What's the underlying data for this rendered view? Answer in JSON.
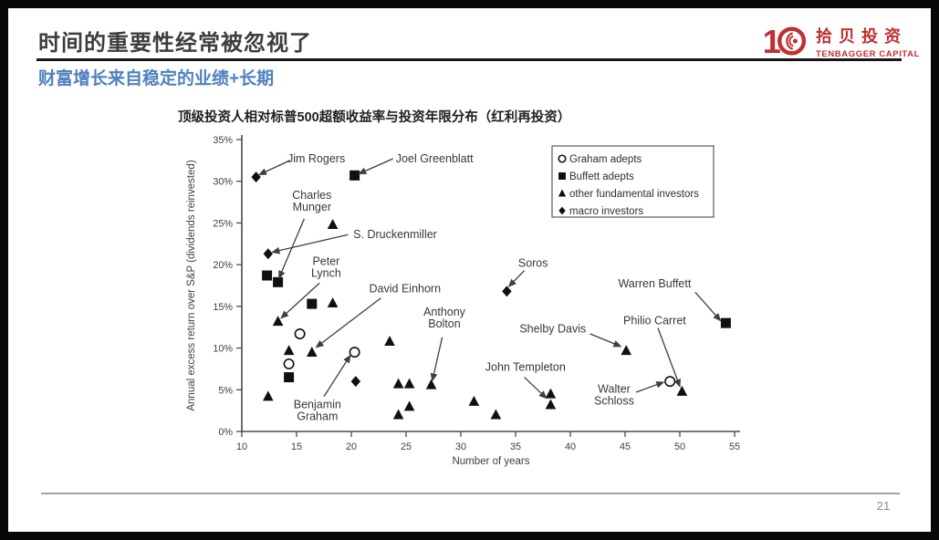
{
  "slide": {
    "title": "时间的重要性经常被忽视了",
    "subtitle": "财富增长来自稳定的业绩+长期",
    "page_number": "21",
    "accent_blue": "#4f81bd",
    "logo": {
      "cn": "拾贝投资",
      "en": "TENBAGGER CAPITAL",
      "color": "#c22f2f"
    }
  },
  "chart_data": {
    "type": "scatter",
    "title": "顶级投资人相对标普500超额收益率与投资年限分布（红利再投资）",
    "xlabel": "Number of years",
    "ylabel": "Annual excess return over S&P (dividends reinvested)",
    "xlim": [
      10,
      55
    ],
    "ylim": [
      0,
      35
    ],
    "xticks": [
      10,
      15,
      20,
      25,
      30,
      35,
      40,
      45,
      50,
      55
    ],
    "yticks": [
      "0%",
      "5%",
      "10%",
      "15%",
      "20%",
      "25%",
      "30%",
      "35%"
    ],
    "grid": false,
    "legend_position": "upper right",
    "legend": [
      {
        "symbol": "circle",
        "label": "Graham adepts"
      },
      {
        "symbol": "square",
        "label": "Buffett adepts"
      },
      {
        "symbol": "triangle",
        "label": "other fundamental investors"
      },
      {
        "symbol": "diamond",
        "label": "macro investors"
      }
    ],
    "series": [
      {
        "name": "Graham adepts",
        "symbol": "circle",
        "points": [
          [
            15.3,
            11.7
          ],
          [
            20.3,
            9.5,
            "Benjamin Graham"
          ],
          [
            14.3,
            8.1
          ],
          [
            49.1,
            6.0,
            "Walter Schloss"
          ]
        ]
      },
      {
        "name": "Buffett adepts",
        "symbol": "square",
        "points": [
          [
            20.3,
            30.7,
            "Joel Greenblatt"
          ],
          [
            12.3,
            18.7
          ],
          [
            13.3,
            17.9,
            "Charles Munger"
          ],
          [
            16.4,
            15.3
          ],
          [
            14.3,
            6.5
          ],
          [
            54.2,
            13.0,
            "Warren Buffett"
          ]
        ]
      },
      {
        "name": "other fundamental investors",
        "symbol": "triangle",
        "points": [
          [
            18.3,
            24.8
          ],
          [
            18.3,
            15.4
          ],
          [
            13.3,
            13.2,
            "Peter Lynch"
          ],
          [
            14.3,
            9.7
          ],
          [
            16.4,
            9.5,
            "David Einhorn"
          ],
          [
            12.4,
            4.2
          ],
          [
            23.5,
            10.8
          ],
          [
            24.3,
            5.7
          ],
          [
            25.3,
            5.7
          ],
          [
            27.3,
            5.6,
            "Anthony Bolton"
          ],
          [
            31.2,
            3.6
          ],
          [
            25.3,
            3.0
          ],
          [
            24.3,
            2.0
          ],
          [
            33.2,
            2.0
          ],
          [
            38.2,
            4.5,
            "John Templeton"
          ],
          [
            38.2,
            3.2
          ],
          [
            45.1,
            9.7,
            "Shelby Davis"
          ],
          [
            50.2,
            4.8,
            "Philio Carret"
          ]
        ]
      },
      {
        "name": "macro investors",
        "symbol": "diamond",
        "points": [
          [
            11.3,
            30.5,
            "Jim Rogers"
          ],
          [
            12.4,
            21.3,
            "S. Druckenmiller"
          ],
          [
            20.4,
            6.0
          ],
          [
            34.2,
            16.8,
            "Soros"
          ]
        ]
      }
    ],
    "annotations": [
      {
        "lines": [
          "Jim Rogers"
        ],
        "tx": 16.8,
        "ty": 32.7,
        "sx": 14.4,
        "sy": 32.5,
        "ex": 11.6,
        "ey": 30.8
      },
      {
        "lines": [
          "Joel Greenblatt"
        ],
        "tx": 27.6,
        "ty": 32.7,
        "sx": 23.8,
        "sy": 32.7,
        "ex": 20.7,
        "ey": 30.9
      },
      {
        "lines": [
          "Charles",
          "Munger"
        ],
        "tx": 16.4,
        "ty": 27.6,
        "sx": 15.7,
        "sy": 25.5,
        "ex": 13.4,
        "ey": 18.4
      },
      {
        "lines": [
          "S. Druckenmiller"
        ],
        "tx": 24.0,
        "ty": 23.6,
        "sx": 19.7,
        "sy": 23.6,
        "ex": 12.8,
        "ey": 21.5
      },
      {
        "lines": [
          "Peter",
          "Lynch"
        ],
        "tx": 17.7,
        "ty": 19.7,
        "sx": 17.1,
        "sy": 17.8,
        "ex": 13.6,
        "ey": 13.6
      },
      {
        "lines": [
          "David Einhorn"
        ],
        "tx": 24.9,
        "ty": 17.1,
        "sx": 22.7,
        "sy": 16.0,
        "ex": 16.8,
        "ey": 10.1
      },
      {
        "lines": [
          "Benjamin",
          "Graham"
        ],
        "tx": 16.9,
        "ty": 2.5,
        "sx": 17.5,
        "sy": 4.2,
        "ex": 19.9,
        "ey": 9.1
      },
      {
        "lines": [
          "Anthony",
          "Bolton"
        ],
        "tx": 28.5,
        "ty": 13.6,
        "sx": 28.3,
        "sy": 11.3,
        "ex": 27.4,
        "ey": 6.1
      },
      {
        "lines": [
          "Soros"
        ],
        "tx": 36.6,
        "ty": 20.2,
        "sx": 35.8,
        "sy": 19.3,
        "ex": 34.4,
        "ey": 17.4
      },
      {
        "lines": [
          "John Templeton"
        ],
        "tx": 35.9,
        "ty": 7.7,
        "sx": 35.8,
        "sy": 6.5,
        "ex": 37.8,
        "ey": 4.0
      },
      {
        "lines": [
          "Shelby Davis"
        ],
        "tx": 38.4,
        "ty": 12.3,
        "sx": 41.8,
        "sy": 11.7,
        "ex": 44.6,
        "ey": 10.2
      },
      {
        "lines": [
          "Warren Buffett"
        ],
        "tx": 47.7,
        "ty": 17.7,
        "sx": 51.4,
        "sy": 16.7,
        "ex": 53.7,
        "ey": 13.3
      },
      {
        "lines": [
          "Philio Carret"
        ],
        "tx": 47.7,
        "ty": 13.3,
        "sx": 48.0,
        "sy": 12.4,
        "ex": 50.0,
        "ey": 5.4
      },
      {
        "lines": [
          "Walter",
          "Schloss"
        ],
        "tx": 44.0,
        "ty": 4.4,
        "sx": 46.0,
        "sy": 4.7,
        "ex": 48.5,
        "ey": 5.9
      }
    ]
  }
}
